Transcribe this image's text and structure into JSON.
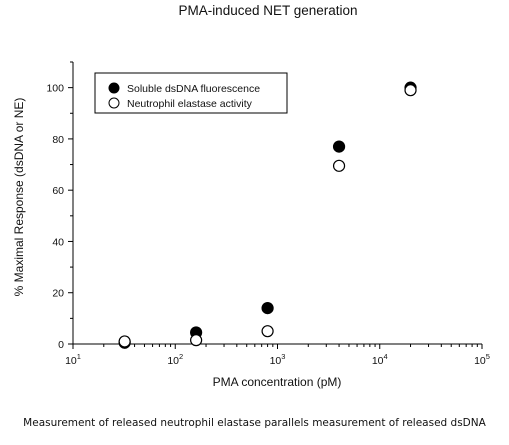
{
  "chart_data": {
    "type": "scatter",
    "title": "PMA-induced NET generation",
    "xlabel": "PMA concentration (pM)",
    "ylabel": "% Maximal Response (dsDNA or NE)",
    "xscale": "log",
    "xlim": [
      10,
      100000
    ],
    "ylim": [
      0,
      110
    ],
    "yticks": [
      0,
      20,
      40,
      60,
      80,
      100
    ],
    "xticks": [
      {
        "base": "10",
        "exp": "1",
        "value": 10
      },
      {
        "base": "10",
        "exp": "2",
        "value": 100
      },
      {
        "base": "10",
        "exp": "3",
        "value": 1000
      },
      {
        "base": "10",
        "exp": "4",
        "value": 10000
      },
      {
        "base": "10",
        "exp": "5",
        "value": 100000
      }
    ],
    "legend_position": "top-left",
    "grid": false,
    "series": [
      {
        "name": "Soluble dsDNA fluorescence",
        "marker": "filled-circle",
        "color": "#000000",
        "x": [
          32,
          160,
          800,
          4000,
          20000
        ],
        "y": [
          0.5,
          4.5,
          14,
          77,
          100
        ]
      },
      {
        "name": "Neutrophil elastase activity",
        "marker": "open-circle",
        "color": "#000000",
        "x": [
          32,
          160,
          800,
          4000,
          20000
        ],
        "y": [
          1,
          1.5,
          5,
          69.5,
          99
        ]
      }
    ]
  },
  "caption": "Measurement of released neutrophil elastase parallels measurement of released dsDNA"
}
